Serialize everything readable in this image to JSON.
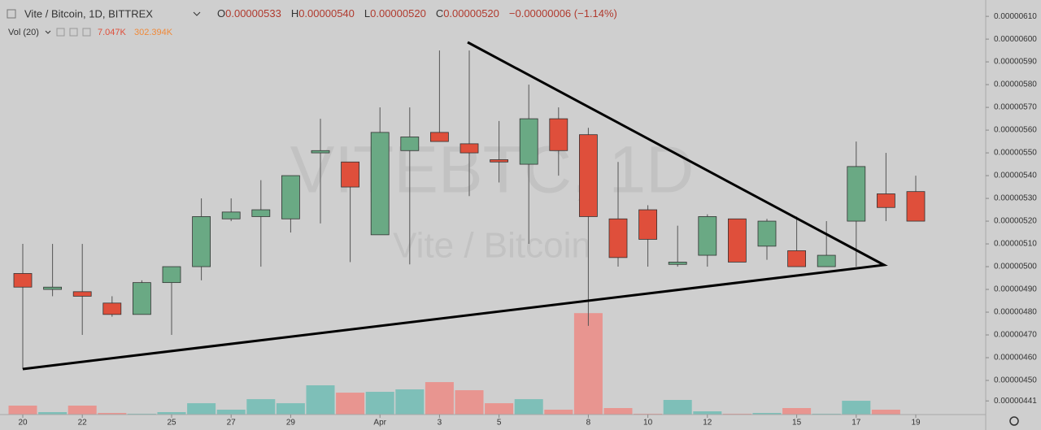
{
  "chart_data": {
    "type": "candlestick",
    "symbol": "Vite / Bitcoin, 1D, BITTREX",
    "ohlc_header": [
      {
        "label": "O",
        "value": "0.00000533"
      },
      {
        "label": "H",
        "value": "0.00000540"
      },
      {
        "label": "L",
        "value": "0.00000520"
      },
      {
        "label": "C",
        "value": "0.00000520"
      }
    ],
    "change": "−0.00000006 (−1.14%)",
    "volume_label": "Vol (20)",
    "volume_value": "7.047K",
    "volume_ma": "302.394K",
    "watermark": "VITEBTC, 1D",
    "watermark_subtitle": "Vite / Bitcoin",
    "categories": [
      "20",
      null,
      "22",
      null,
      null,
      "25",
      null,
      "27",
      null,
      "29",
      null,
      null,
      "Apr",
      null,
      "3",
      null,
      "5",
      null,
      null,
      "8",
      null,
      "10",
      null,
      "12",
      null,
      null,
      "15",
      null,
      "17",
      null,
      "19"
    ],
    "open": [
      4.97e-06,
      4.9e-06,
      4.89e-06,
      4.84e-06,
      4.79e-06,
      4.93e-06,
      5e-06,
      5.21e-06,
      5.22e-06,
      5.21e-06,
      5.5e-06,
      5.46e-06,
      5.14e-06,
      5.51e-06,
      5.59e-06,
      5.54e-06,
      5.47e-06,
      5.45e-06,
      5.65e-06,
      5.58e-06,
      5.21e-06,
      5.25e-06,
      5.01e-06,
      5.05e-06,
      5.21e-06,
      5.09e-06,
      5.07e-06,
      5e-06,
      5.2e-06,
      5.32e-06,
      5.33e-06
    ],
    "high": [
      5.1e-06,
      5.1e-06,
      5.1e-06,
      4.87e-06,
      4.94e-06,
      5e-06,
      5.3e-06,
      5.3e-06,
      5.38e-06,
      5.4e-06,
      5.65e-06,
      5.46e-06,
      5.7e-06,
      5.7e-06,
      5.95e-06,
      5.95e-06,
      5.64e-06,
      5.8e-06,
      5.7e-06,
      5.61e-06,
      5.46e-06,
      5.27e-06,
      5.18e-06,
      5.23e-06,
      5.21e-06,
      5.21e-06,
      5.22e-06,
      5.2e-06,
      5.55e-06,
      5.5e-06,
      5.4e-06
    ],
    "low": [
      4.55e-06,
      4.87e-06,
      4.7e-06,
      4.78e-06,
      4.79e-06,
      4.7e-06,
      4.94e-06,
      5.2e-06,
      5e-06,
      5.15e-06,
      5.19e-06,
      5.02e-06,
      5.14e-06,
      5.01e-06,
      5.55e-06,
      5.31e-06,
      5.37e-06,
      5.1e-06,
      5.4e-06,
      4.74e-06,
      5e-06,
      5e-06,
      5e-06,
      5e-06,
      5.02e-06,
      5.03e-06,
      5e-06,
      5e-06,
      5e-06,
      5.2e-06,
      5.2e-06
    ],
    "close": [
      4.91e-06,
      4.91e-06,
      4.87e-06,
      4.79e-06,
      4.93e-06,
      5e-06,
      5.22e-06,
      5.24e-06,
      5.25e-06,
      5.4e-06,
      5.51e-06,
      5.35e-06,
      5.59e-06,
      5.57e-06,
      5.55e-06,
      5.5e-06,
      5.46e-06,
      5.65e-06,
      5.51e-06,
      5.22e-06,
      5.04e-06,
      5.12e-06,
      5.02e-06,
      5.22e-06,
      5.02e-06,
      5.2e-06,
      5e-06,
      5.05e-06,
      5.44e-06,
      5.26e-06,
      5.2e-06
    ],
    "volume": [
      172,
      47,
      172,
      31,
      16,
      47,
      218,
      94,
      296,
      218,
      562,
      421,
      437,
      484,
      624,
      468,
      218,
      296,
      94,
      1950,
      125,
      16,
      281,
      62,
      16,
      31,
      125,
      16,
      265,
      94,
      7.047
    ],
    "volume_ylim": [
      0,
      3000
    ],
    "up_color": "#6aa984",
    "down_color": "#df4f3b",
    "volume_up_color": "#7ebfb8",
    "volume_down_color": "#e89590",
    "ylim": [
      4.35e-06,
      6.154e-06
    ],
    "yticks": [
      {
        "value": 6.1e-06,
        "label": "0.00000610"
      },
      {
        "value": 6e-06,
        "label": "0.00000600"
      },
      {
        "value": 5.9e-06,
        "label": "0.00000590"
      },
      {
        "value": 5.8e-06,
        "label": "0.00000580"
      },
      {
        "value": 5.7e-06,
        "label": "0.00000570"
      },
      {
        "value": 5.6e-06,
        "label": "0.00000560"
      },
      {
        "value": 5.5e-06,
        "label": "0.00000550"
      },
      {
        "value": 5.4e-06,
        "label": "0.00000540"
      },
      {
        "value": 5.3e-06,
        "label": "0.00000530"
      },
      {
        "value": 5.2e-06,
        "label": "0.00000520"
      },
      {
        "value": 5.1e-06,
        "label": "0.00000510"
      },
      {
        "value": 5e-06,
        "label": "0.00000500"
      },
      {
        "value": 4.9e-06,
        "label": "0.00000490"
      },
      {
        "value": 4.8e-06,
        "label": "0.00000480"
      },
      {
        "value": 4.7e-06,
        "label": "0.00000470"
      },
      {
        "value": 4.6e-06,
        "label": "0.00000460"
      },
      {
        "value": 4.5e-06,
        "label": "0.00000450"
      },
      {
        "value": 4.41e-06,
        "label": "0.00000441"
      }
    ],
    "grid": false
  }
}
